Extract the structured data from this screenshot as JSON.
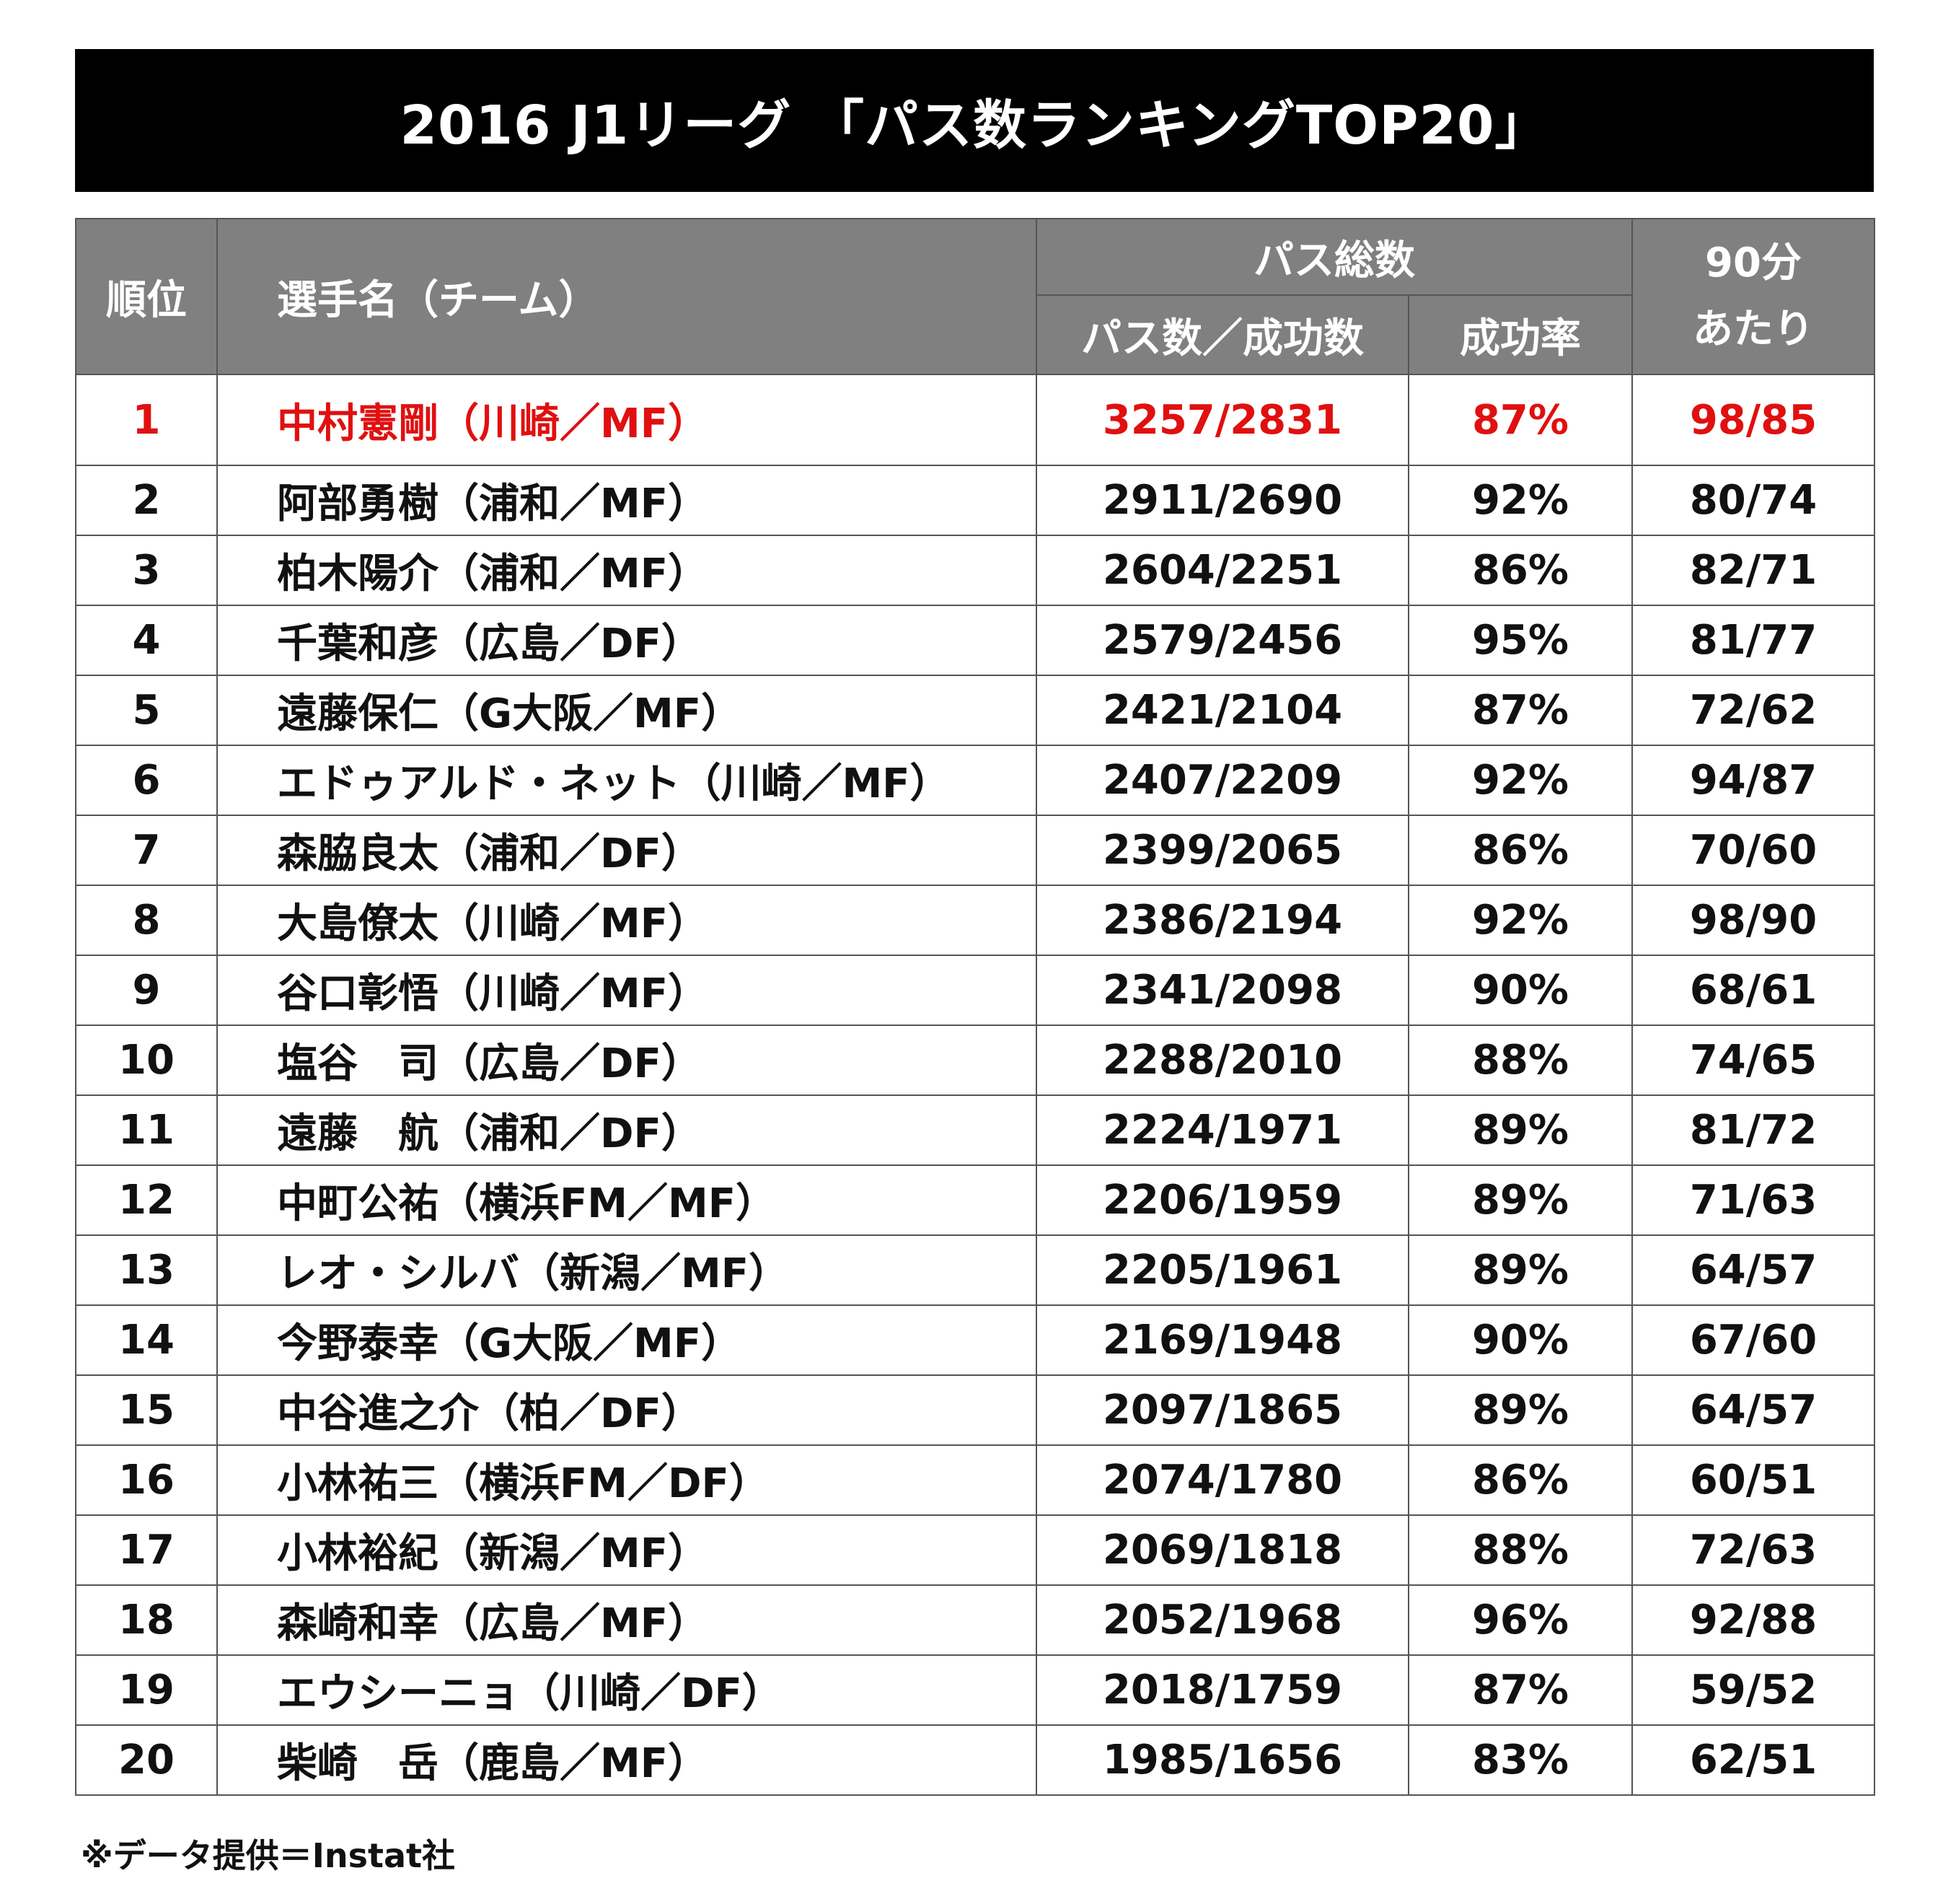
{
  "title": "2016 J1リーグ 「パス数ランキングTOP20」",
  "header": {
    "rank": "順位",
    "player": "選手名（チーム）",
    "pass_total": "パス総数",
    "passes_success": "パス数／成功数",
    "success_rate": "成功率",
    "per90_line1": "90分",
    "per90_line2": "あたり"
  },
  "highlight_color": "#e01010",
  "rows": [
    {
      "rank": "1",
      "player": "中村憲剛（川崎／MF）",
      "passes": "3257/2831",
      "rate": "87%",
      "per90": "98/85"
    },
    {
      "rank": "2",
      "player": "阿部勇樹（浦和／MF）",
      "passes": "2911/2690",
      "rate": "92%",
      "per90": "80/74"
    },
    {
      "rank": "3",
      "player": "柏木陽介（浦和／MF）",
      "passes": "2604/2251",
      "rate": "86%",
      "per90": "82/71"
    },
    {
      "rank": "4",
      "player": "千葉和彦（広島／DF）",
      "passes": "2579/2456",
      "rate": "95%",
      "per90": "81/77"
    },
    {
      "rank": "5",
      "player": "遠藤保仁（G大阪／MF）",
      "passes": "2421/2104",
      "rate": "87%",
      "per90": "72/62"
    },
    {
      "rank": "6",
      "player": "エドゥアルド・ネット（川崎／MF）",
      "passes": "2407/2209",
      "rate": "92%",
      "per90": "94/87"
    },
    {
      "rank": "7",
      "player": "森脇良太（浦和／DF）",
      "passes": "2399/2065",
      "rate": "86%",
      "per90": "70/60"
    },
    {
      "rank": "8",
      "player": "大島僚太（川崎／MF）",
      "passes": "2386/2194",
      "rate": "92%",
      "per90": "98/90"
    },
    {
      "rank": "9",
      "player": "谷口彰悟（川崎／MF）",
      "passes": "2341/2098",
      "rate": "90%",
      "per90": "68/61"
    },
    {
      "rank": "10",
      "player": "塩谷　司（広島／DF）",
      "passes": "2288/2010",
      "rate": "88%",
      "per90": "74/65"
    },
    {
      "rank": "11",
      "player": "遠藤　航（浦和／DF）",
      "passes": "2224/1971",
      "rate": "89%",
      "per90": "81/72"
    },
    {
      "rank": "12",
      "player": "中町公祐（横浜FM／MF）",
      "passes": "2206/1959",
      "rate": "89%",
      "per90": "71/63"
    },
    {
      "rank": "13",
      "player": "レオ・シルバ（新潟／MF）",
      "passes": "2205/1961",
      "rate": "89%",
      "per90": "64/57"
    },
    {
      "rank": "14",
      "player": "今野泰幸（G大阪／MF）",
      "passes": "2169/1948",
      "rate": "90%",
      "per90": "67/60"
    },
    {
      "rank": "15",
      "player": "中谷進之介（柏／DF）",
      "passes": "2097/1865",
      "rate": "89%",
      "per90": "64/57"
    },
    {
      "rank": "16",
      "player": "小林祐三（横浜FM／DF）",
      "passes": "2074/1780",
      "rate": "86%",
      "per90": "60/51"
    },
    {
      "rank": "17",
      "player": "小林裕紀（新潟／MF）",
      "passes": "2069/1818",
      "rate": "88%",
      "per90": "72/63"
    },
    {
      "rank": "18",
      "player": "森崎和幸（広島／MF）",
      "passes": "2052/1968",
      "rate": "96%",
      "per90": "92/88"
    },
    {
      "rank": "19",
      "player": "エウシーニョ（川崎／DF）",
      "passes": "2018/1759",
      "rate": "87%",
      "per90": "59/52"
    },
    {
      "rank": "20",
      "player": "柴崎　岳（鹿島／MF）",
      "passes": "1985/1656",
      "rate": "83%",
      "per90": "62/51"
    }
  ],
  "footnote": "※データ提供＝Instat社"
}
